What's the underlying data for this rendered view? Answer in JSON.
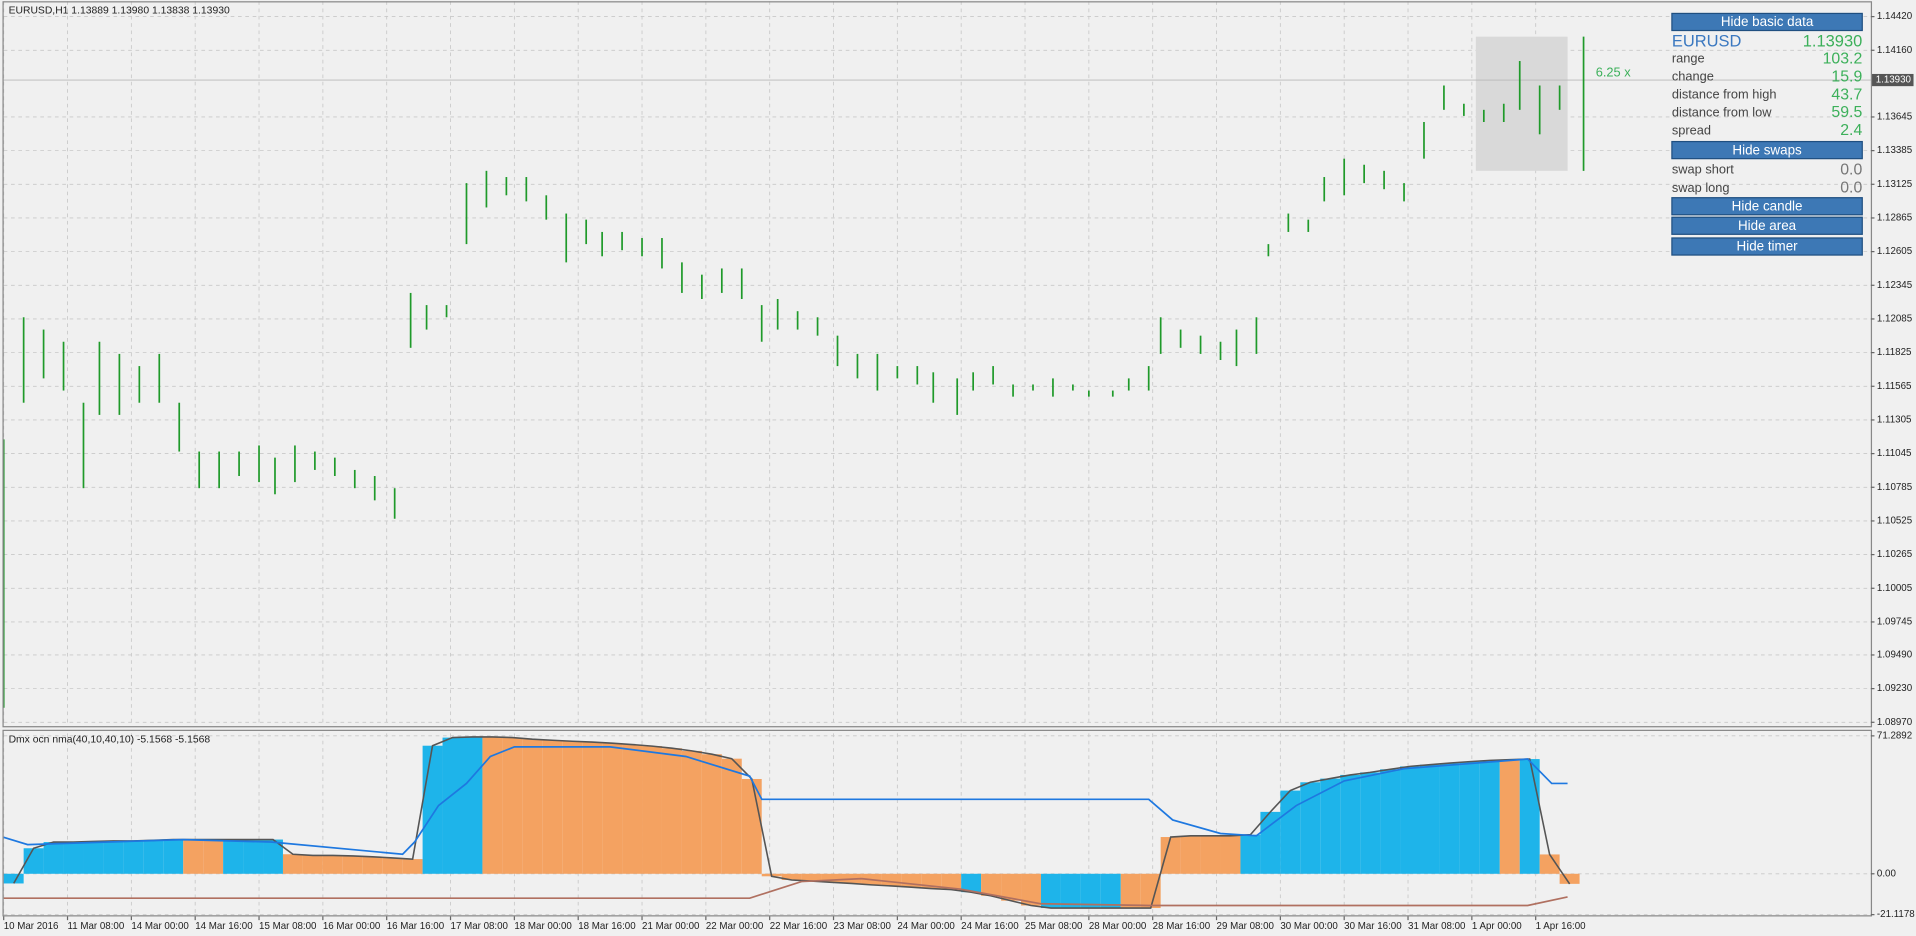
{
  "chart_data": [
    {
      "type": "ohlc",
      "title": "EURUSD,H1  1.13889 1.13980 1.13838 1.13930",
      "color": "#1f9a2a",
      "x": [
        0,
        5,
        10,
        15,
        20,
        24,
        29,
        34,
        39,
        44,
        49,
        54,
        59,
        64,
        68,
        73,
        78,
        83,
        88,
        93,
        98,
        102,
        106,
        111,
        116,
        121,
        126,
        131,
        136,
        141,
        146,
        150,
        155,
        160,
        165,
        170,
        175,
        180,
        185,
        190,
        194,
        199,
        204,
        209,
        214,
        219,
        224,
        229,
        233,
        239,
        243,
        248,
        253,
        258,
        263,
        268,
        272,
        278,
        282,
        287,
        290,
        295,
        300,
        305,
        309,
        314,
        317,
        322,
        327,
        331,
        336,
        341,
        346,
        351,
        356,
        361,
        366,
        371,
        376,
        380,
        385,
        390,
        396
      ],
      "high": [
        1.11155,
        1.12098,
        1.12003,
        1.11909,
        1.11438,
        1.11909,
        1.11815,
        1.11721,
        1.11815,
        1.11438,
        1.11061,
        1.11061,
        1.11061,
        1.11108,
        1.11014,
        1.11108,
        1.11061,
        1.11014,
        1.10919,
        1.10872,
        1.10778,
        1.12286,
        1.12192,
        1.12192,
        1.13134,
        1.13229,
        1.13181,
        1.13181,
        1.1304,
        1.12899,
        1.12852,
        1.12757,
        1.12757,
        1.1271,
        1.1271,
        1.12522,
        1.12427,
        1.12475,
        1.12475,
        1.12192,
        1.12239,
        1.12145,
        1.12098,
        1.11956,
        1.11815,
        1.11815,
        1.11721,
        1.11721,
        1.11673,
        1.11626,
        1.11673,
        1.11721,
        1.11579,
        1.11579,
        1.11626,
        1.11579,
        1.11532,
        1.11532,
        1.11626,
        1.11721,
        1.12098,
        1.12003,
        1.11956,
        1.11909,
        1.12003,
        1.12098,
        1.12663,
        1.12899,
        1.12852,
        1.13181,
        1.13323,
        1.13276,
        1.13229,
        1.13134,
        1.13606,
        1.13888,
        1.13747,
        1.137,
        1.13747,
        1.14077,
        1.13888,
        1.13888,
        1.14265
      ],
      "low": [
        1.09082,
        1.11438,
        1.11626,
        1.11532,
        1.10778,
        1.11344,
        1.11344,
        1.11438,
        1.11438,
        1.11061,
        1.10778,
        1.10778,
        1.10872,
        1.10825,
        1.10731,
        1.10825,
        1.10919,
        1.10872,
        1.10778,
        1.10684,
        1.10542,
        1.11862,
        1.12003,
        1.12098,
        1.12663,
        1.12946,
        1.1304,
        1.12993,
        1.12852,
        1.12522,
        1.12663,
        1.12569,
        1.12616,
        1.12569,
        1.12475,
        1.12286,
        1.12239,
        1.12286,
        1.12239,
        1.11909,
        1.12003,
        1.12003,
        1.11956,
        1.11721,
        1.11626,
        1.11532,
        1.11626,
        1.11579,
        1.11438,
        1.11344,
        1.11532,
        1.11579,
        1.11485,
        1.11532,
        1.11485,
        1.11532,
        1.11485,
        1.11485,
        1.11532,
        1.11532,
        1.11815,
        1.11862,
        1.11815,
        1.11768,
        1.11721,
        1.11815,
        1.12569,
        1.12757,
        1.12757,
        1.12993,
        1.1304,
        1.13134,
        1.13087,
        1.12993,
        1.13323,
        1.137,
        1.13653,
        1.13606,
        1.13606,
        1.137,
        1.13511,
        1.137,
        1.13229
      ],
      "xlim": [
        0,
        468
      ],
      "ylim": [
        1.0895,
        1.1452
      ],
      "yticks": [
        {
          "value": 1.1442,
          "label": "1.14420"
        },
        {
          "value": 1.1416,
          "label": "1.14160"
        },
        {
          "value": 1.13645,
          "label": "1.13645"
        },
        {
          "value": 1.13385,
          "label": "1.13385"
        },
        {
          "value": 1.13125,
          "label": "1.13125"
        },
        {
          "value": 1.12865,
          "label": "1.12865"
        },
        {
          "value": 1.12605,
          "label": "1.12605"
        },
        {
          "value": 1.12345,
          "label": "1.12345"
        },
        {
          "value": 1.12085,
          "label": "1.12085"
        },
        {
          "value": 1.11825,
          "label": "1.11825"
        },
        {
          "value": 1.11565,
          "label": "1.11565"
        },
        {
          "value": 1.11305,
          "label": "1.11305"
        },
        {
          "value": 1.11045,
          "label": "1.11045"
        },
        {
          "value": 1.10785,
          "label": "1.10785"
        },
        {
          "value": 1.10525,
          "label": "1.10525"
        },
        {
          "value": 1.10265,
          "label": "1.10265"
        },
        {
          "value": 1.10005,
          "label": "1.10005"
        },
        {
          "value": 1.09745,
          "label": "1.09745"
        },
        {
          "value": 1.0949,
          "label": "1.09490"
        },
        {
          "value": 1.0923,
          "label": "1.09230"
        },
        {
          "value": 1.0897,
          "label": "1.08970"
        }
      ],
      "current_price": {
        "value": 1.1393,
        "label": "1.13930"
      },
      "area": {
        "xlim": [
          369,
          392
        ],
        "ylim": [
          1.13229,
          1.14265
        ]
      },
      "annotation": "6.25 x",
      "grid": true
    },
    {
      "type": "bar",
      "title": "Dmx ocn nma(40,10,40,10) -5.1568 -5.1568",
      "x": [
        0,
        5,
        10,
        15,
        20,
        25,
        30,
        35,
        40,
        45,
        50,
        55,
        60,
        65,
        70,
        75,
        80,
        85,
        90,
        95,
        100,
        105,
        110,
        115,
        120,
        125,
        130,
        135,
        140,
        145,
        150,
        155,
        160,
        165,
        170,
        175,
        180,
        185,
        190,
        195,
        200,
        205,
        210,
        215,
        220,
        225,
        230,
        235,
        240,
        245,
        250,
        255,
        260,
        265,
        270,
        275,
        280,
        285,
        290,
        295,
        300,
        305,
        310,
        315,
        320,
        325,
        330,
        335,
        340,
        345,
        350,
        355,
        360,
        365,
        370,
        375,
        380,
        385,
        390
      ],
      "values": [
        -5,
        13.2,
        16.4,
        16.4,
        16.7,
        17,
        17,
        17.3,
        17.7,
        17.7,
        17.7,
        17.7,
        17.7,
        17.7,
        10.1,
        9.5,
        9.5,
        9.2,
        8.8,
        8.2,
        7.6,
        66.2,
        70.4,
        70.7,
        70.7,
        70.4,
        69.6,
        69,
        68.5,
        68.1,
        67.5,
        66.8,
        66,
        64.9,
        63.5,
        61.8,
        59.5,
        49,
        -1.3,
        -3.2,
        -3.8,
        -4.4,
        -5,
        -5.7,
        -6.3,
        -6.9,
        -7.6,
        -8.2,
        -9.5,
        -11.4,
        -13.9,
        -16.4,
        -17.7,
        -17.7,
        -17.7,
        -17.7,
        -17.7,
        -17.7,
        19,
        19.6,
        19.6,
        19.6,
        20.2,
        32,
        43,
        47.3,
        49.2,
        51.1,
        52.4,
        54,
        55.5,
        56.4,
        57.2,
        58,
        58.6,
        59,
        59.3,
        10,
        -5.2
      ],
      "colors": [
        "#1eb4ea",
        "#1eb4ea",
        "#1eb4ea",
        "#1eb4ea",
        "#1eb4ea",
        "#1eb4ea",
        "#1eb4ea",
        "#1eb4ea",
        "#1eb4ea",
        "#f4a261",
        "#f4a261",
        "#1eb4ea",
        "#1eb4ea",
        "#1eb4ea",
        "#f4a261",
        "#f4a261",
        "#f4a261",
        "#f4a261",
        "#f4a261",
        "#f4a261",
        "#f4a261",
        "#1eb4ea",
        "#1eb4ea",
        "#1eb4ea",
        "#f4a261",
        "#f4a261",
        "#f4a261",
        "#f4a261",
        "#f4a261",
        "#f4a261",
        "#f4a261",
        "#f4a261",
        "#f4a261",
        "#f4a261",
        "#f4a261",
        "#f4a261",
        "#f4a261",
        "#f4a261",
        "#f4a261",
        "#f4a261",
        "#f4a261",
        "#f4a261",
        "#f4a261",
        "#f4a261",
        "#f4a261",
        "#f4a261",
        "#f4a261",
        "#f4a261",
        "#1eb4ea",
        "#f4a261",
        "#f4a261",
        "#f4a261",
        "#1eb4ea",
        "#1eb4ea",
        "#1eb4ea",
        "#1eb4ea",
        "#f4a261",
        "#f4a261",
        "#f4a261",
        "#f4a261",
        "#f4a261",
        "#f4a261",
        "#1eb4ea",
        "#1eb4ea",
        "#1eb4ea",
        "#1eb4ea",
        "#1eb4ea",
        "#1eb4ea",
        "#1eb4ea",
        "#1eb4ea",
        "#1eb4ea",
        "#1eb4ea",
        "#1eb4ea",
        "#1eb4ea",
        "#1eb4ea",
        "#f4a261",
        "#1eb4ea",
        "#f4a261",
        "#f4a261"
      ],
      "envelope_color": "#555555",
      "series": [
        {
          "color": "#1e78e0",
          "x": [
            0,
            6,
            45,
            67,
            100,
            103,
            109,
            116,
            122,
            128,
            152,
            171,
            187,
            190,
            287,
            293,
            305,
            314,
            324,
            336,
            351,
            382,
            388,
            392
          ],
          "values": [
            18.9,
            15.1,
            17.7,
            16.4,
            10.1,
            16.4,
            35.3,
            46.7,
            60.6,
            65.6,
            65.6,
            60.6,
            50.5,
            38.5,
            38.5,
            27.8,
            20.8,
            19.6,
            35.3,
            48,
            54.3,
            59.3,
            46.7,
            46.7
          ]
        },
        {
          "color": "#b07060",
          "x": [
            0,
            187,
            200,
            215,
            240,
            260,
            287,
            382,
            392
          ],
          "values": [
            -12.6,
            -12.6,
            -4,
            -2.5,
            -8,
            -15.5,
            -16.4,
            -16.4,
            -12
          ]
        }
      ],
      "xlim": [
        0,
        468
      ],
      "ylim": [
        -21.1178,
        71.2892
      ],
      "yticks": [
        -21.1178,
        {
          "value": 0,
          "label": "0.00"
        },
        71.2892
      ],
      "xticks": [
        {
          "value": 0,
          "label": "10 Mar 2016"
        },
        {
          "value": 16,
          "label": "11 Mar 08:00"
        },
        {
          "value": 32,
          "label": "14 Mar 00:00"
        },
        {
          "value": 48,
          "label": "14 Mar 16:00"
        },
        {
          "value": 64,
          "label": "15 Mar 08:00"
        },
        {
          "value": 80,
          "label": "16 Mar 00:00"
        },
        {
          "value": 96,
          "label": "16 Mar 16:00"
        },
        {
          "value": 112,
          "label": "17 Mar 08:00"
        },
        {
          "value": 128,
          "label": "18 Mar 00:00"
        },
        {
          "value": 144,
          "label": "18 Mar 16:00"
        },
        {
          "value": 160,
          "label": "21 Mar 00:00"
        },
        {
          "value": 176,
          "label": "22 Mar 00:00"
        },
        {
          "value": 192,
          "label": "22 Mar 16:00"
        },
        {
          "value": 208,
          "label": "23 Mar 08:00"
        },
        {
          "value": 224,
          "label": "24 Mar 00:00"
        },
        {
          "value": 240,
          "label": "24 Mar 16:00"
        },
        {
          "value": 256,
          "label": "25 Mar 08:00"
        },
        {
          "value": 272,
          "label": "28 Mar 00:00"
        },
        {
          "value": 288,
          "label": "28 Mar 16:00"
        },
        {
          "value": 304,
          "label": "29 Mar 08:00"
        },
        {
          "value": 320,
          "label": "30 Mar 00:00"
        },
        {
          "value": 336,
          "label": "30 Mar 16:00"
        },
        {
          "value": 352,
          "label": "31 Mar 08:00"
        },
        {
          "value": 368,
          "label": "1 Apr 00:00"
        },
        {
          "value": 384,
          "label": "1 Apr 16:00"
        }
      ],
      "grid": true
    }
  ],
  "panel": {
    "hide_basic": "Hide basic data",
    "symbol": "EURUSD",
    "price": "1.13930",
    "rows": [
      [
        "range",
        "103.2"
      ],
      [
        "change",
        "15.9"
      ],
      [
        "distance from high",
        "43.7"
      ],
      [
        "distance from low",
        "59.5"
      ],
      [
        "spread",
        "2.4"
      ]
    ],
    "hide_swaps": "Hide swaps",
    "swaps": [
      [
        "swap short",
        "0.0"
      ],
      [
        "swap long",
        "0.0"
      ]
    ],
    "hide_candle": "Hide candle",
    "hide_area": "Hide area",
    "hide_timer": "Hide timer"
  }
}
